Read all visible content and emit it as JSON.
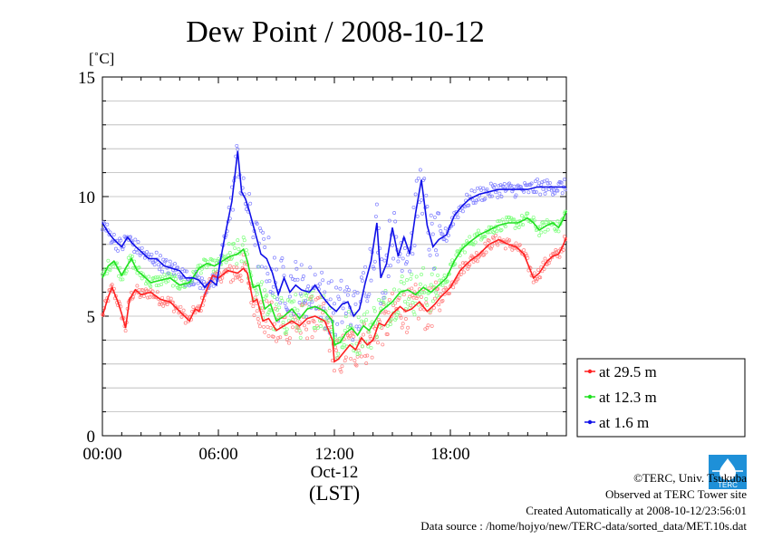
{
  "chart_data": {
    "type": "scatter",
    "title": "Dew Point / 2008-10-12",
    "ylabel": "[˚C]",
    "xlabel": "(LST)",
    "date_label": "Oct-12",
    "xlim": [
      "00:00",
      "24:00"
    ],
    "ylim": [
      0,
      15
    ],
    "yticks": [
      "0",
      "5",
      "10",
      "15"
    ],
    "xticks": [
      "00:00",
      "06:00",
      "12:00",
      "18:00"
    ],
    "grid": true,
    "legend_position": "right",
    "series": [
      {
        "name": "at 29.5 m",
        "color": "#ff2020",
        "scatter_color": "#ff8080",
        "points": [
          [
            0.0,
            5.0
          ],
          [
            0.3,
            5.8
          ],
          [
            0.5,
            6.2
          ],
          [
            0.8,
            5.6
          ],
          [
            1.0,
            5.1
          ],
          [
            1.2,
            4.5
          ],
          [
            1.4,
            5.7
          ],
          [
            1.7,
            6.1
          ],
          [
            2.0,
            5.9
          ],
          [
            2.5,
            6.0
          ],
          [
            3.0,
            5.7
          ],
          [
            3.5,
            5.6
          ],
          [
            4.0,
            5.2
          ],
          [
            4.5,
            4.8
          ],
          [
            4.8,
            5.3
          ],
          [
            5.0,
            5.2
          ],
          [
            5.3,
            5.9
          ],
          [
            5.7,
            6.7
          ],
          [
            6.0,
            6.6
          ],
          [
            6.5,
            6.9
          ],
          [
            7.0,
            6.8
          ],
          [
            7.3,
            7.0
          ],
          [
            7.5,
            6.8
          ],
          [
            7.8,
            5.6
          ],
          [
            8.0,
            5.7
          ],
          [
            8.3,
            4.8
          ],
          [
            8.6,
            4.9
          ],
          [
            9.0,
            4.4
          ],
          [
            9.4,
            4.6
          ],
          [
            9.8,
            4.8
          ],
          [
            10.2,
            4.6
          ],
          [
            10.6,
            4.9
          ],
          [
            11.0,
            5.0
          ],
          [
            11.5,
            4.8
          ],
          [
            11.9,
            4.0
          ],
          [
            12.0,
            3.1
          ],
          [
            12.2,
            3.2
          ],
          [
            12.5,
            3.5
          ],
          [
            12.8,
            3.8
          ],
          [
            13.1,
            3.6
          ],
          [
            13.4,
            4.1
          ],
          [
            13.7,
            3.8
          ],
          [
            14.0,
            4.0
          ],
          [
            14.3,
            4.7
          ],
          [
            14.6,
            4.6
          ],
          [
            15.0,
            5.1
          ],
          [
            15.4,
            5.4
          ],
          [
            15.7,
            5.2
          ],
          [
            16.0,
            5.3
          ],
          [
            16.4,
            5.6
          ],
          [
            16.8,
            5.2
          ],
          [
            17.2,
            5.5
          ],
          [
            17.5,
            5.8
          ],
          [
            18.0,
            6.2
          ],
          [
            18.5,
            6.9
          ],
          [
            19.0,
            7.3
          ],
          [
            19.5,
            7.6
          ],
          [
            20.0,
            8.0
          ],
          [
            20.5,
            8.2
          ],
          [
            21.0,
            8.0
          ],
          [
            21.4,
            7.9
          ],
          [
            21.8,
            7.6
          ],
          [
            22.0,
            7.2
          ],
          [
            22.3,
            6.6
          ],
          [
            22.6,
            6.8
          ],
          [
            23.0,
            7.3
          ],
          [
            23.3,
            7.5
          ],
          [
            23.6,
            7.6
          ],
          [
            23.8,
            7.9
          ],
          [
            24.0,
            8.3
          ]
        ]
      },
      {
        "name": "at 12.3 m",
        "color": "#20e020",
        "scatter_color": "#80ff80",
        "points": [
          [
            0.0,
            6.6
          ],
          [
            0.3,
            7.1
          ],
          [
            0.6,
            7.3
          ],
          [
            1.0,
            6.7
          ],
          [
            1.2,
            7.0
          ],
          [
            1.5,
            7.4
          ],
          [
            1.8,
            6.9
          ],
          [
            2.1,
            6.7
          ],
          [
            2.5,
            6.4
          ],
          [
            3.0,
            6.5
          ],
          [
            3.5,
            6.6
          ],
          [
            4.0,
            6.3
          ],
          [
            4.5,
            6.4
          ],
          [
            5.0,
            7.0
          ],
          [
            5.4,
            7.2
          ],
          [
            5.8,
            7.1
          ],
          [
            6.2,
            7.3
          ],
          [
            6.6,
            7.5
          ],
          [
            7.0,
            7.6
          ],
          [
            7.3,
            7.8
          ],
          [
            7.5,
            7.3
          ],
          [
            7.8,
            6.2
          ],
          [
            8.1,
            6.3
          ],
          [
            8.4,
            5.3
          ],
          [
            8.7,
            5.5
          ],
          [
            9.0,
            4.8
          ],
          [
            9.4,
            5.0
          ],
          [
            9.8,
            5.3
          ],
          [
            10.2,
            4.9
          ],
          [
            10.6,
            5.3
          ],
          [
            11.0,
            5.4
          ],
          [
            11.5,
            5.2
          ],
          [
            11.9,
            4.8
          ],
          [
            12.0,
            3.8
          ],
          [
            12.3,
            3.9
          ],
          [
            12.6,
            4.3
          ],
          [
            12.9,
            4.5
          ],
          [
            13.2,
            4.2
          ],
          [
            13.5,
            4.6
          ],
          [
            13.8,
            4.4
          ],
          [
            14.1,
            4.8
          ],
          [
            14.4,
            5.2
          ],
          [
            14.7,
            5.4
          ],
          [
            15.0,
            5.6
          ],
          [
            15.4,
            6.0
          ],
          [
            15.8,
            6.1
          ],
          [
            16.2,
            5.9
          ],
          [
            16.6,
            6.2
          ],
          [
            17.0,
            6.0
          ],
          [
            17.4,
            6.3
          ],
          [
            17.8,
            6.6
          ],
          [
            18.2,
            7.3
          ],
          [
            18.6,
            7.8
          ],
          [
            19.0,
            8.1
          ],
          [
            19.5,
            8.4
          ],
          [
            20.0,
            8.6
          ],
          [
            20.5,
            8.8
          ],
          [
            21.0,
            8.9
          ],
          [
            21.5,
            8.9
          ],
          [
            22.0,
            9.1
          ],
          [
            22.3,
            8.9
          ],
          [
            22.6,
            8.6
          ],
          [
            23.0,
            8.8
          ],
          [
            23.3,
            8.9
          ],
          [
            23.6,
            8.7
          ],
          [
            23.8,
            9.0
          ],
          [
            24.0,
            9.4
          ]
        ]
      },
      {
        "name": "at 1.6 m",
        "color": "#1010e8",
        "scatter_color": "#8080ff",
        "points": [
          [
            0.0,
            8.9
          ],
          [
            0.3,
            8.5
          ],
          [
            0.6,
            8.2
          ],
          [
            1.0,
            7.9
          ],
          [
            1.3,
            8.3
          ],
          [
            1.6,
            8.0
          ],
          [
            2.0,
            7.7
          ],
          [
            2.4,
            7.4
          ],
          [
            2.8,
            7.4
          ],
          [
            3.2,
            7.1
          ],
          [
            3.6,
            7.0
          ],
          [
            4.0,
            6.9
          ],
          [
            4.3,
            6.6
          ],
          [
            4.7,
            6.6
          ],
          [
            5.0,
            6.5
          ],
          [
            5.3,
            6.2
          ],
          [
            5.6,
            6.5
          ],
          [
            5.9,
            6.3
          ],
          [
            6.1,
            7.3
          ],
          [
            6.4,
            8.6
          ],
          [
            6.7,
            9.8
          ],
          [
            6.9,
            11.2
          ],
          [
            7.0,
            11.9
          ],
          [
            7.2,
            10.2
          ],
          [
            7.4,
            9.9
          ],
          [
            7.6,
            9.4
          ],
          [
            7.8,
            8.8
          ],
          [
            8.0,
            8.2
          ],
          [
            8.2,
            7.6
          ],
          [
            8.5,
            7.4
          ],
          [
            8.8,
            6.8
          ],
          [
            9.1,
            5.9
          ],
          [
            9.4,
            6.6
          ],
          [
            9.7,
            6.0
          ],
          [
            10.0,
            6.3
          ],
          [
            10.3,
            6.1
          ],
          [
            10.7,
            6.0
          ],
          [
            11.0,
            6.3
          ],
          [
            11.4,
            5.8
          ],
          [
            11.8,
            5.4
          ],
          [
            12.1,
            5.2
          ],
          [
            12.4,
            5.5
          ],
          [
            12.7,
            5.6
          ],
          [
            13.0,
            5.0
          ],
          [
            13.3,
            5.3
          ],
          [
            13.6,
            6.4
          ],
          [
            13.9,
            7.3
          ],
          [
            14.2,
            8.9
          ],
          [
            14.4,
            6.6
          ],
          [
            14.7,
            7.2
          ],
          [
            15.0,
            8.7
          ],
          [
            15.3,
            7.5
          ],
          [
            15.6,
            8.3
          ],
          [
            15.9,
            7.6
          ],
          [
            16.2,
            9.3
          ],
          [
            16.5,
            10.7
          ],
          [
            16.8,
            8.8
          ],
          [
            17.1,
            7.9
          ],
          [
            17.4,
            8.2
          ],
          [
            17.8,
            8.4
          ],
          [
            18.2,
            9.2
          ],
          [
            18.6,
            9.6
          ],
          [
            19.0,
            9.9
          ],
          [
            19.5,
            10.1
          ],
          [
            20.0,
            10.2
          ],
          [
            20.5,
            10.3
          ],
          [
            21.0,
            10.3
          ],
          [
            21.5,
            10.3
          ],
          [
            22.0,
            10.3
          ],
          [
            22.5,
            10.4
          ],
          [
            23.0,
            10.4
          ],
          [
            23.5,
            10.4
          ],
          [
            24.0,
            10.4
          ]
        ]
      }
    ]
  },
  "footer": {
    "copyright": "©TERC, Univ. Tsukuba",
    "observed": "Observed at TERC Tower site",
    "created": "Created Automatically at 2008-10-12/23:56:01",
    "source": "Data source : /home/hojyo/new/TERC-data/sorted_data/MET.10s.dat"
  },
  "logo": {
    "text": "TERC",
    "color": "#1e90d8"
  }
}
